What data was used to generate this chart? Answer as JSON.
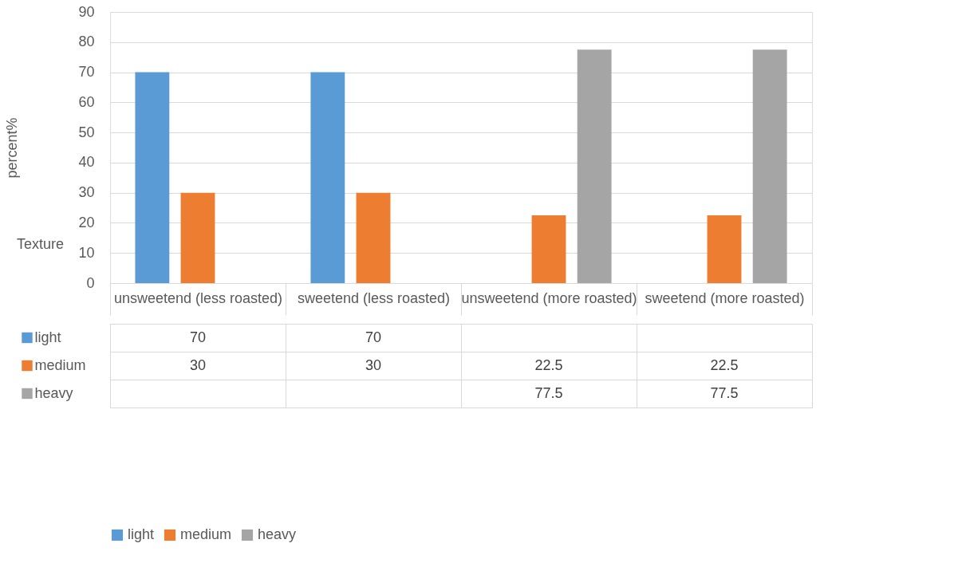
{
  "chart_data": {
    "type": "bar",
    "title": "Texture",
    "ylabel": "percent%",
    "categories": [
      "unsweetend (less roasted)",
      "sweetend (less roasted)",
      "unsweetend (more roasted)",
      "sweetend (more roasted)"
    ],
    "series": [
      {
        "name": "light",
        "color": "#5b9bd5",
        "values": [
          70,
          70,
          null,
          null
        ]
      },
      {
        "name": "medium",
        "color": "#ed7d31",
        "values": [
          30,
          30,
          22.5,
          22.5
        ]
      },
      {
        "name": "heavy",
        "color": "#a5a5a5",
        "values": [
          null,
          null,
          77.5,
          77.5
        ]
      }
    ],
    "ylim": [
      0,
      90
    ],
    "yticks": [
      0,
      10,
      20,
      30,
      40,
      50,
      60,
      70,
      80,
      90
    ],
    "grid": "y",
    "legend": "bottom",
    "data_labels": true
  }
}
